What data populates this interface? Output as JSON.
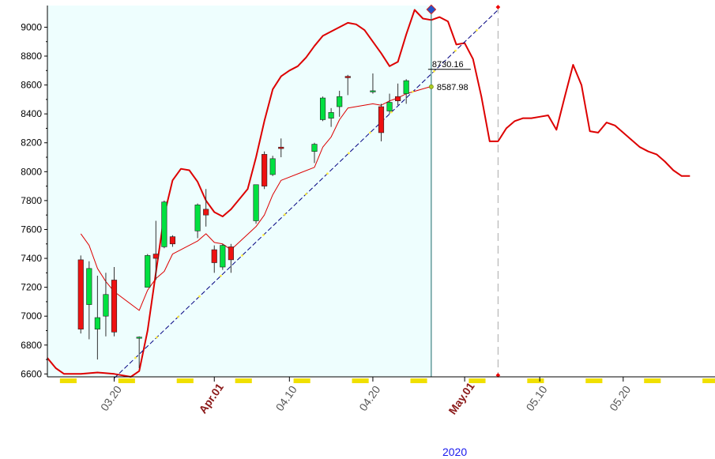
{
  "chart_data": {
    "type": "candlestick",
    "title": "",
    "xlabel": "2020",
    "ylabel": "",
    "ylim": [
      6580,
      9150
    ],
    "yticks": [
      6600,
      6800,
      7000,
      7200,
      7400,
      7600,
      7800,
      8000,
      8200,
      8400,
      8600,
      8800,
      9000
    ],
    "ytick_labels": [
      "6600",
      "6800",
      "7000",
      "7200",
      "7400",
      "7600",
      "7800",
      "8000",
      "8200",
      "8400",
      "8600",
      "8800",
      "9000"
    ],
    "xlim": [
      "2020-03-12",
      "2020-05-31"
    ],
    "xticks": [
      {
        "date": "2020-03-20",
        "label": "03.20",
        "color": "#555555",
        "bold": false
      },
      {
        "date": "2020-04-01",
        "label": "Apr.01",
        "color": "#8b1a1a",
        "bold": true
      },
      {
        "date": "2020-04-10",
        "label": "04.10",
        "color": "#555555",
        "bold": false
      },
      {
        "date": "2020-04-20",
        "label": "04.20",
        "color": "#555555",
        "bold": false
      },
      {
        "date": "2020-05-01",
        "label": "May.01",
        "color": "#8b1a1a",
        "bold": true
      },
      {
        "date": "2020-05-10",
        "label": "05.10",
        "color": "#555555",
        "bold": false
      },
      {
        "date": "2020-05-20",
        "label": "05.20",
        "color": "#555555",
        "bold": false
      }
    ],
    "candles": [
      {
        "date": "2020-03-16",
        "open": 7390,
        "high": 7420,
        "low": 6880,
        "close": 6910
      },
      {
        "date": "2020-03-17",
        "open": 7080,
        "high": 7380,
        "low": 6840,
        "close": 7330
      },
      {
        "date": "2020-03-18",
        "open": 6910,
        "high": 7280,
        "low": 6700,
        "close": 6990
      },
      {
        "date": "2020-03-19",
        "open": 7000,
        "high": 7300,
        "low": 6860,
        "close": 7150
      },
      {
        "date": "2020-03-20",
        "open": 7250,
        "high": 7340,
        "low": 6860,
        "close": 6890
      },
      {
        "date": "2020-03-23",
        "open": 6850,
        "high": 6860,
        "low": 6640,
        "close": 6855
      },
      {
        "date": "2020-03-24",
        "open": 7200,
        "high": 7430,
        "low": 7200,
        "close": 7420
      },
      {
        "date": "2020-03-25",
        "open": 7430,
        "high": 7660,
        "low": 7250,
        "close": 7400
      },
      {
        "date": "2020-03-26",
        "open": 7480,
        "high": 7800,
        "low": 7470,
        "close": 7790
      },
      {
        "date": "2020-03-27",
        "open": 7550,
        "high": 7560,
        "low": 7480,
        "close": 7500
      },
      {
        "date": "2020-03-30",
        "open": 7590,
        "high": 7780,
        "low": 7540,
        "close": 7770
      },
      {
        "date": "2020-03-31",
        "open": 7740,
        "high": 7880,
        "low": 7620,
        "close": 7700
      },
      {
        "date": "2020-04-01",
        "open": 7460,
        "high": 7490,
        "low": 7300,
        "close": 7370
      },
      {
        "date": "2020-04-02",
        "open": 7340,
        "high": 7500,
        "low": 7320,
        "close": 7490
      },
      {
        "date": "2020-04-03",
        "open": 7480,
        "high": 7500,
        "low": 7300,
        "close": 7390
      },
      {
        "date": "2020-04-06",
        "open": 7660,
        "high": 7900,
        "low": 7640,
        "close": 7910
      },
      {
        "date": "2020-04-07",
        "open": 8120,
        "high": 8140,
        "low": 7880,
        "close": 7900
      },
      {
        "date": "2020-04-08",
        "open": 7980,
        "high": 8110,
        "low": 7970,
        "close": 8090
      },
      {
        "date": "2020-04-09",
        "open": 8170,
        "high": 8230,
        "low": 8100,
        "close": 8160
      },
      {
        "date": "2020-04-13",
        "open": 8140,
        "high": 8200,
        "low": 8060,
        "close": 8190
      },
      {
        "date": "2020-04-14",
        "open": 8360,
        "high": 8520,
        "low": 8350,
        "close": 8510
      },
      {
        "date": "2020-04-15",
        "open": 8370,
        "high": 8440,
        "low": 8310,
        "close": 8410
      },
      {
        "date": "2020-04-16",
        "open": 8450,
        "high": 8560,
        "low": 8380,
        "close": 8520
      },
      {
        "date": "2020-04-17",
        "open": 8660,
        "high": 8670,
        "low": 8530,
        "close": 8650
      },
      {
        "date": "2020-04-20",
        "open": 8560,
        "high": 8680,
        "low": 8540,
        "close": 8560
      },
      {
        "date": "2020-04-21",
        "open": 8450,
        "high": 8470,
        "low": 8210,
        "close": 8270
      },
      {
        "date": "2020-04-22",
        "open": 8420,
        "high": 8540,
        "low": 8400,
        "close": 8480
      },
      {
        "date": "2020-04-23",
        "open": 8520,
        "high": 8610,
        "low": 8460,
        "close": 8490
      },
      {
        "date": "2020-04-24",
        "open": 8540,
        "high": 8640,
        "low": 8470,
        "close": 8630
      }
    ],
    "up_color": "#00e040",
    "down_color": "#ee1111",
    "series": [
      {
        "style": "upper-band",
        "color": "#dd0000",
        "points": [
          [
            "2020-03-12",
            6710
          ],
          [
            "2020-03-13",
            6640
          ],
          [
            "2020-03-14",
            6600
          ],
          [
            "2020-03-16",
            6600
          ],
          [
            "2020-03-18",
            6610
          ],
          [
            "2020-03-20",
            6600
          ],
          [
            "2020-03-22",
            6580
          ],
          [
            "2020-03-23",
            6620
          ],
          [
            "2020-03-24",
            6900
          ],
          [
            "2020-03-25",
            7300
          ],
          [
            "2020-03-26",
            7700
          ],
          [
            "2020-03-27",
            7940
          ],
          [
            "2020-03-28",
            8020
          ],
          [
            "2020-03-29",
            8010
          ],
          [
            "2020-03-30",
            7930
          ],
          [
            "2020-03-31",
            7800
          ],
          [
            "2020-04-01",
            7720
          ],
          [
            "2020-04-02",
            7690
          ],
          [
            "2020-04-03",
            7740
          ],
          [
            "2020-04-05",
            7880
          ],
          [
            "2020-04-06",
            8100
          ],
          [
            "2020-04-07",
            8350
          ],
          [
            "2020-04-08",
            8570
          ],
          [
            "2020-04-09",
            8660
          ],
          [
            "2020-04-10",
            8700
          ],
          [
            "2020-04-11",
            8730
          ],
          [
            "2020-04-12",
            8790
          ],
          [
            "2020-04-13",
            8870
          ],
          [
            "2020-04-14",
            8940
          ],
          [
            "2020-04-15",
            8970
          ],
          [
            "2020-04-16",
            9000
          ],
          [
            "2020-04-17",
            9030
          ],
          [
            "2020-04-18",
            9020
          ],
          [
            "2020-04-19",
            8980
          ],
          [
            "2020-04-20",
            8900
          ],
          [
            "2020-04-21",
            8820
          ],
          [
            "2020-04-22",
            8730
          ],
          [
            "2020-04-23",
            8760
          ],
          [
            "2020-04-24",
            8950
          ],
          [
            "2020-04-25",
            9120
          ],
          [
            "2020-04-26",
            9060
          ],
          [
            "2020-04-27",
            9050
          ],
          [
            "2020-04-28",
            9070
          ],
          [
            "2020-04-29",
            9040
          ],
          [
            "2020-04-30",
            8880
          ],
          [
            "2020-05-01",
            8890
          ],
          [
            "2020-05-02",
            8780
          ],
          [
            "2020-05-03",
            8520
          ],
          [
            "2020-05-04",
            8210
          ],
          [
            "2020-05-05",
            8210
          ],
          [
            "2020-05-06",
            8300
          ],
          [
            "2020-05-07",
            8350
          ],
          [
            "2020-05-08",
            8370
          ],
          [
            "2020-05-09",
            8370
          ],
          [
            "2020-05-10",
            8380
          ],
          [
            "2020-05-11",
            8390
          ],
          [
            "2020-05-12",
            8290
          ],
          [
            "2020-05-13",
            8520
          ],
          [
            "2020-05-14",
            8740
          ],
          [
            "2020-05-15",
            8600
          ],
          [
            "2020-05-16",
            8280
          ],
          [
            "2020-05-17",
            8270
          ],
          [
            "2020-05-18",
            8340
          ],
          [
            "2020-05-19",
            8320
          ],
          [
            "2020-05-20",
            8270
          ],
          [
            "2020-05-21",
            8220
          ],
          [
            "2020-05-22",
            8170
          ],
          [
            "2020-05-23",
            8140
          ],
          [
            "2020-05-24",
            8120
          ],
          [
            "2020-05-25",
            8070
          ],
          [
            "2020-05-26",
            8010
          ],
          [
            "2020-05-27",
            7970
          ],
          [
            "2020-05-28",
            7970
          ]
        ]
      },
      {
        "style": "middle-line",
        "color": "#dd0000",
        "points": [
          [
            "2020-03-16",
            7570
          ],
          [
            "2020-03-17",
            7490
          ],
          [
            "2020-03-18",
            7330
          ],
          [
            "2020-03-19",
            7240
          ],
          [
            "2020-03-20",
            7170
          ],
          [
            "2020-03-23",
            7040
          ],
          [
            "2020-03-24",
            7180
          ],
          [
            "2020-03-25",
            7260
          ],
          [
            "2020-03-26",
            7310
          ],
          [
            "2020-03-27",
            7430
          ],
          [
            "2020-03-30",
            7520
          ],
          [
            "2020-03-31",
            7570
          ],
          [
            "2020-04-01",
            7510
          ],
          [
            "2020-04-02",
            7500
          ],
          [
            "2020-04-03",
            7460
          ],
          [
            "2020-04-06",
            7620
          ],
          [
            "2020-04-07",
            7700
          ],
          [
            "2020-04-08",
            7840
          ],
          [
            "2020-04-09",
            7940
          ],
          [
            "2020-04-13",
            8030
          ],
          [
            "2020-04-14",
            8170
          ],
          [
            "2020-04-15",
            8240
          ],
          [
            "2020-04-16",
            8360
          ],
          [
            "2020-04-17",
            8440
          ],
          [
            "2020-04-20",
            8470
          ],
          [
            "2020-04-21",
            8460
          ],
          [
            "2020-04-22",
            8490
          ],
          [
            "2020-04-23",
            8510
          ],
          [
            "2020-04-24",
            8540
          ],
          [
            "2020-04-27",
            8590
          ]
        ]
      },
      {
        "style": "trend-line",
        "color": "#000080",
        "points": [
          [
            "2020-03-20",
            6570
          ],
          [
            "2020-05-05",
            9120
          ]
        ]
      }
    ],
    "annotations": [
      {
        "label": "8730.16",
        "date": "2020-04-27",
        "value": 8730.16,
        "kind": "level"
      },
      {
        "label": "8587.98",
        "date": "2020-04-27",
        "value": 8587.98,
        "kind": "marker"
      }
    ],
    "shaded_range": [
      "2020-03-12",
      "2020-04-27"
    ],
    "cursor_date": "2020-04-27",
    "projection_date": "2020-05-05",
    "background_color": "#eefefe"
  }
}
